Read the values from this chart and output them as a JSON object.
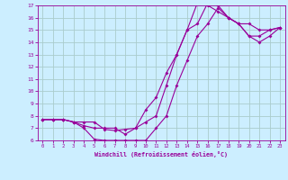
{
  "xlabel": "Windchill (Refroidissement éolien,°C)",
  "bg_color": "#cceeff",
  "grid_color": "#aacccc",
  "line_color": "#990099",
  "xlim": [
    -0.5,
    23.5
  ],
  "ylim": [
    6,
    17
  ],
  "xticks": [
    0,
    1,
    2,
    3,
    4,
    5,
    6,
    7,
    8,
    9,
    10,
    11,
    12,
    13,
    14,
    15,
    16,
    17,
    18,
    19,
    20,
    21,
    22,
    23
  ],
  "yticks": [
    6,
    7,
    8,
    9,
    10,
    11,
    12,
    13,
    14,
    15,
    16,
    17
  ],
  "line1_x": [
    0,
    1,
    2,
    3,
    4,
    5,
    6,
    7,
    8,
    9,
    10,
    11,
    12,
    13,
    14,
    15,
    16,
    17,
    18,
    19,
    20,
    21,
    22,
    23
  ],
  "line1_y": [
    7.7,
    7.7,
    7.7,
    7.5,
    7.5,
    7.5,
    6.9,
    6.8,
    6.9,
    7.0,
    7.5,
    8.0,
    10.5,
    13.0,
    15.0,
    15.5,
    17.2,
    17.0,
    16.0,
    15.5,
    15.5,
    15.0,
    15.0,
    15.2
  ],
  "line2_x": [
    0,
    1,
    2,
    3,
    4,
    5,
    6,
    7,
    8,
    9,
    10,
    11,
    12,
    13,
    14,
    15,
    16,
    17,
    18,
    19,
    20,
    21,
    22,
    23
  ],
  "line2_y": [
    7.7,
    7.7,
    7.7,
    7.5,
    7.0,
    6.1,
    6.0,
    6.0,
    6.0,
    6.0,
    6.0,
    7.0,
    8.0,
    10.5,
    12.5,
    14.5,
    15.5,
    16.8,
    16.0,
    15.5,
    14.5,
    14.0,
    14.5,
    15.2
  ],
  "line3_x": [
    0,
    1,
    2,
    3,
    4,
    5,
    6,
    7,
    8,
    9,
    10,
    11,
    12,
    13,
    14,
    15,
    16,
    17,
    18,
    19,
    20,
    21,
    22,
    23
  ],
  "line3_y": [
    7.7,
    7.7,
    7.7,
    7.5,
    7.2,
    7.0,
    7.0,
    7.0,
    6.5,
    7.0,
    8.5,
    9.5,
    11.5,
    13.0,
    15.0,
    17.2,
    17.0,
    16.5,
    16.0,
    15.5,
    14.5,
    14.5,
    15.0,
    15.2
  ]
}
